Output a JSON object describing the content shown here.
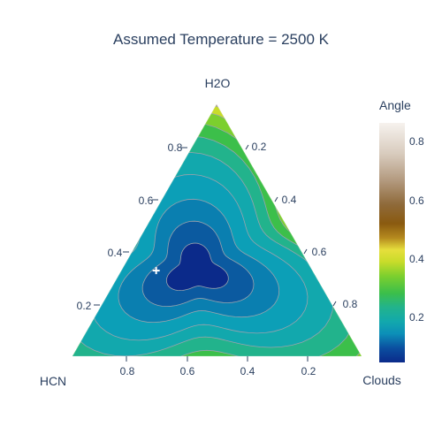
{
  "chart_data": {
    "type": "ternary-contour",
    "title": "Assumed Temperature = 2500 K",
    "axes": {
      "a": {
        "label": "H2O",
        "ticks": [
          "0.2",
          "0.4",
          "0.6",
          "0.8"
        ]
      },
      "b": {
        "label": "HCN",
        "ticks": [
          "0.2",
          "0.4",
          "0.6",
          "0.8"
        ]
      },
      "c": {
        "label": "Clouds",
        "ticks": [
          "0.2",
          "0.4",
          "0.6",
          "0.8"
        ]
      }
    },
    "colorbar": {
      "title": "Angle",
      "ticks": [
        "0.2",
        "0.4",
        "0.6",
        "0.8"
      ],
      "range": [
        0.05,
        0.86
      ]
    },
    "minimum_marker": {
      "a": 0.34,
      "b": 0.54,
      "c": 0.12
    },
    "colors": {
      "text": "#2a3f5f",
      "contour_line": "#9aa3ad"
    }
  }
}
